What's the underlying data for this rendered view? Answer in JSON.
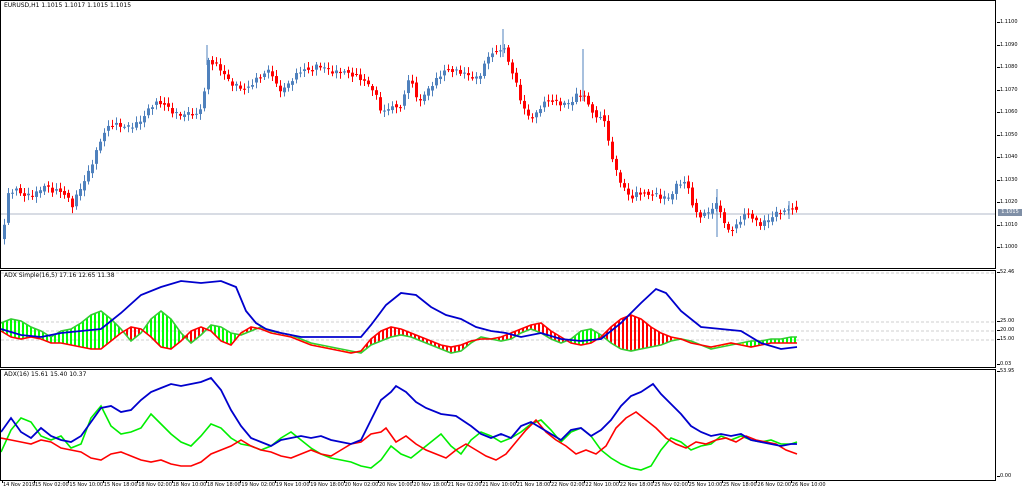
{
  "main_chart": {
    "label": "EURUSD,H1  1.1015 1.1017 1.1015 1.1015",
    "current_price": "1.1015",
    "price_ticks": [
      "1.1100",
      "1.1090",
      "1.1080",
      "1.1070",
      "1.1060",
      "1.1050",
      "1.1040",
      "1.1030",
      "1.1020",
      "1.1010",
      "1.1000"
    ],
    "colors": {
      "bull": "#4f81bd",
      "bear": "#ff0000",
      "current_line": "#b0b8c8"
    }
  },
  "adx_simple": {
    "label": "ADX Simple(16,5) 17.16 12.65 11.38",
    "ticks": [
      "52.46",
      "25.00",
      "20.00",
      "15.00",
      "0.03"
    ],
    "colors": {
      "adx": "#0000cd",
      "plus_di": "#32cd32",
      "minus_di": "#ff0000",
      "fill_up": "#00ff00",
      "fill_dn": "#ff0000",
      "fill_neutral": "#ffff00",
      "levels": "#c0c0c0"
    }
  },
  "adx": {
    "label": "ADX(16) 15.61 15.40 10.37",
    "ticks": [
      "53.95",
      "0.00"
    ],
    "colors": {
      "adx": "#0000cd",
      "plus_di": "#00ee00",
      "minus_di": "#ff0000"
    }
  },
  "time_axis": {
    "labels": [
      "14 Nov 2019",
      "15 Nov 02:00",
      "15 Nov 10:00",
      "15 Nov 18:00",
      "18 Nov 02:00",
      "18 Nov 10:00",
      "18 Nov 18:00",
      "19 Nov 02:00",
      "19 Nov 10:00",
      "19 Nov 18:00",
      "20 Nov 02:00",
      "20 Nov 10:00",
      "20 Nov 18:00",
      "21 Nov 02:00",
      "21 Nov 10:00",
      "21 Nov 18:00",
      "22 Nov 02:00",
      "22 Nov 10:00",
      "22 Nov 18:00",
      "25 Nov 02:00",
      "25 Nov 10:00",
      "25 Nov 18:00",
      "26 Nov 02:00",
      "26 Nov 10:00"
    ]
  }
}
